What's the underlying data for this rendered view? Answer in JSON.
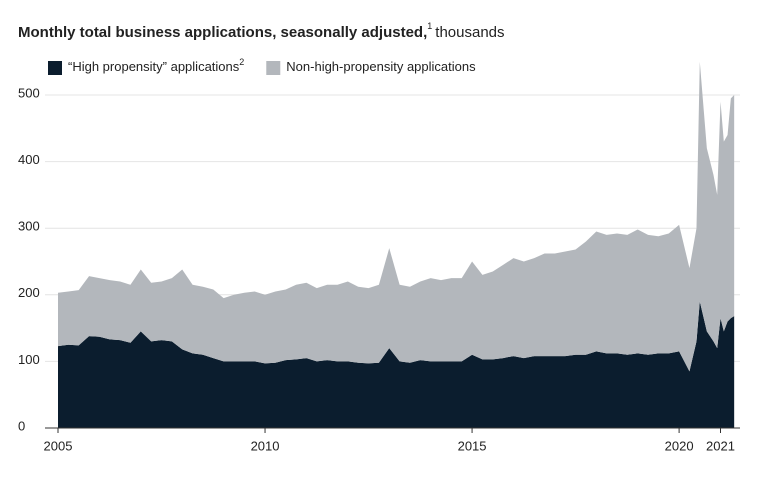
{
  "chart_data": {
    "type": "stacked-area",
    "title": "Monthly total business applications, seasonally adjusted,",
    "title_note": "1",
    "title_unit": "thousands",
    "x": [
      2005,
      2005.25,
      2005.5,
      2005.75,
      2006,
      2006.25,
      2006.5,
      2006.75,
      2007,
      2007.25,
      2007.5,
      2007.75,
      2008,
      2008.25,
      2008.5,
      2008.75,
      2009,
      2009.25,
      2009.5,
      2009.75,
      2010,
      2010.25,
      2010.5,
      2010.75,
      2011,
      2011.25,
      2011.5,
      2011.75,
      2012,
      2012.25,
      2012.5,
      2012.75,
      2013,
      2013.25,
      2013.5,
      2013.75,
      2014,
      2014.25,
      2014.5,
      2014.75,
      2015,
      2015.25,
      2015.5,
      2015.75,
      2016,
      2016.25,
      2016.5,
      2016.75,
      2017,
      2017.25,
      2017.5,
      2017.75,
      2018,
      2018.25,
      2018.5,
      2018.75,
      2019,
      2019.25,
      2019.5,
      2019.75,
      2020,
      2020.25,
      2020.42,
      2020.5,
      2020.67,
      2020.83,
      2020.92,
      2021,
      2021.08,
      2021.17,
      2021.25,
      2021.33
    ],
    "series": [
      {
        "name": "“High propensity” applications",
        "name_note": "2",
        "color": "#0b1d2e",
        "values": [
          123,
          125,
          124,
          138,
          137,
          133,
          132,
          128,
          145,
          130,
          132,
          130,
          118,
          112,
          110,
          105,
          100,
          100,
          100,
          100,
          97,
          98,
          102,
          103,
          105,
          100,
          102,
          100,
          100,
          98,
          97,
          98,
          120,
          100,
          98,
          102,
          100,
          100,
          100,
          100,
          110,
          103,
          103,
          105,
          108,
          105,
          108,
          108,
          108,
          108,
          110,
          110,
          115,
          112,
          112,
          110,
          112,
          110,
          112,
          112,
          115,
          85,
          130,
          190,
          145,
          130,
          120,
          165,
          145,
          160,
          165,
          168
        ]
      },
      {
        "name": "Non-high-propensity applications",
        "color": "#b3b7bc",
        "values": [
          80,
          80,
          83,
          90,
          88,
          89,
          88,
          87,
          93,
          88,
          88,
          95,
          120,
          103,
          102,
          103,
          95,
          100,
          103,
          105,
          103,
          107,
          106,
          112,
          113,
          110,
          113,
          115,
          120,
          114,
          113,
          117,
          150,
          115,
          114,
          118,
          125,
          122,
          125,
          125,
          140,
          127,
          132,
          140,
          147,
          145,
          147,
          154,
          154,
          157,
          158,
          170,
          180,
          178,
          180,
          180,
          186,
          180,
          176,
          180,
          190,
          155,
          170,
          360,
          275,
          250,
          230,
          325,
          285,
          280,
          330,
          332
        ]
      }
    ],
    "xlim": [
      2005,
      2021.35
    ],
    "xticks": [
      2005,
      2010,
      2015,
      2020,
      2021
    ],
    "ylim": [
      0,
      500
    ],
    "yticks": [
      0,
      100,
      200,
      300,
      400,
      500
    ],
    "grid": true
  }
}
